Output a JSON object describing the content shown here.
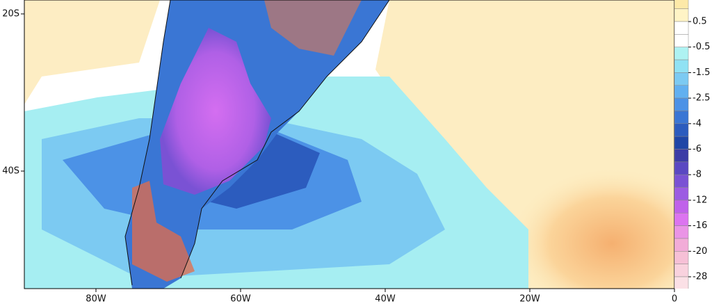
{
  "map": {
    "lat_ticks": [
      "20S",
      "40S"
    ],
    "lon_ticks": [
      "80W",
      "60W",
      "40W",
      "20W",
      "0"
    ],
    "colorbar": {
      "labels": [
        "0.5",
        "-0.5",
        "-1.5",
        "-2.5",
        "-4",
        "-6",
        "-8",
        "-12",
        "-16",
        "-20",
        "-28"
      ],
      "colors": [
        "#fde9a8",
        "#fff4c6",
        "#ffffff",
        "#ffffff",
        "#aef2f2",
        "#90e2f4",
        "#7ccaf2",
        "#62b0f0",
        "#4c92e6",
        "#3a76d4",
        "#2c5cbe",
        "#1f46a6",
        "#3c3ca6",
        "#5a48c2",
        "#7a52d4",
        "#9c5ce2",
        "#c062ea",
        "#dc74f0",
        "#ea94e6",
        "#f2acd8",
        "#f6c0d6",
        "#f9d2de",
        "#fbe0e6"
      ]
    }
  }
}
